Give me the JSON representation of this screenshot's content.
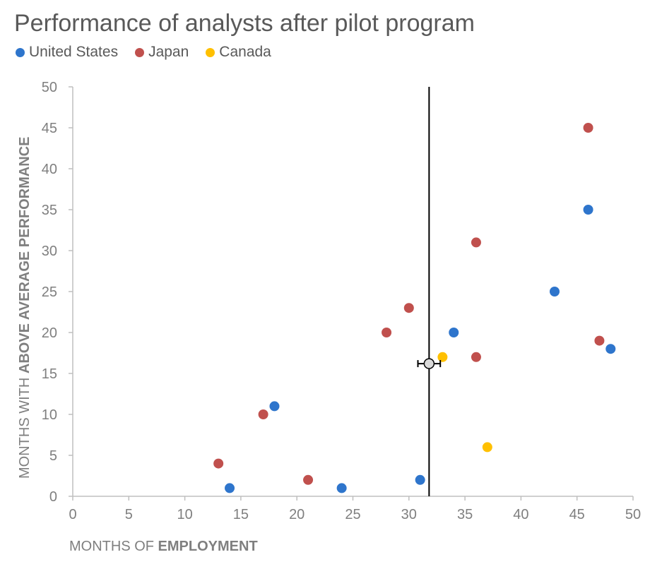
{
  "chart_data": {
    "type": "scatter",
    "title": "Performance of analysts after pilot program",
    "xlabel": {
      "prefix": "MONTHS OF ",
      "bold": "EMPLOYMENT"
    },
    "ylabel": {
      "prefix": "MONTHS WITH ",
      "bold": "ABOVE AVERAGE PERFORMANCE"
    },
    "xlim": [
      0,
      50
    ],
    "ylim": [
      0,
      50
    ],
    "xticks": [
      "0",
      "5",
      "10",
      "15",
      "20",
      "25",
      "30",
      "35",
      "40",
      "45",
      "50"
    ],
    "yticks": [
      "0",
      "5",
      "10",
      "15",
      "20",
      "25",
      "30",
      "35",
      "40",
      "45",
      "50"
    ],
    "grid": false,
    "legend_position": "top-left",
    "series": [
      {
        "name": "United States",
        "color": "#2e75cc",
        "points": [
          [
            14,
            1
          ],
          [
            18,
            11
          ],
          [
            24,
            1
          ],
          [
            31,
            2
          ],
          [
            34,
            20
          ],
          [
            43,
            25
          ],
          [
            46,
            35
          ],
          [
            48,
            18
          ]
        ]
      },
      {
        "name": "Japan",
        "color": "#c0504d",
        "points": [
          [
            13,
            4
          ],
          [
            17,
            10
          ],
          [
            21,
            2
          ],
          [
            28,
            20
          ],
          [
            30,
            23
          ],
          [
            36,
            31
          ],
          [
            36,
            17
          ],
          [
            46,
            45
          ],
          [
            47,
            19
          ]
        ]
      },
      {
        "name": "Canada",
        "color": "#ffc000",
        "points": [
          [
            33,
            17
          ],
          [
            37,
            6
          ]
        ]
      }
    ],
    "reference_line": {
      "x": 31.8
    },
    "mean_point": {
      "x": 31.8,
      "y": 16.2,
      "x_error": 1.0
    }
  }
}
